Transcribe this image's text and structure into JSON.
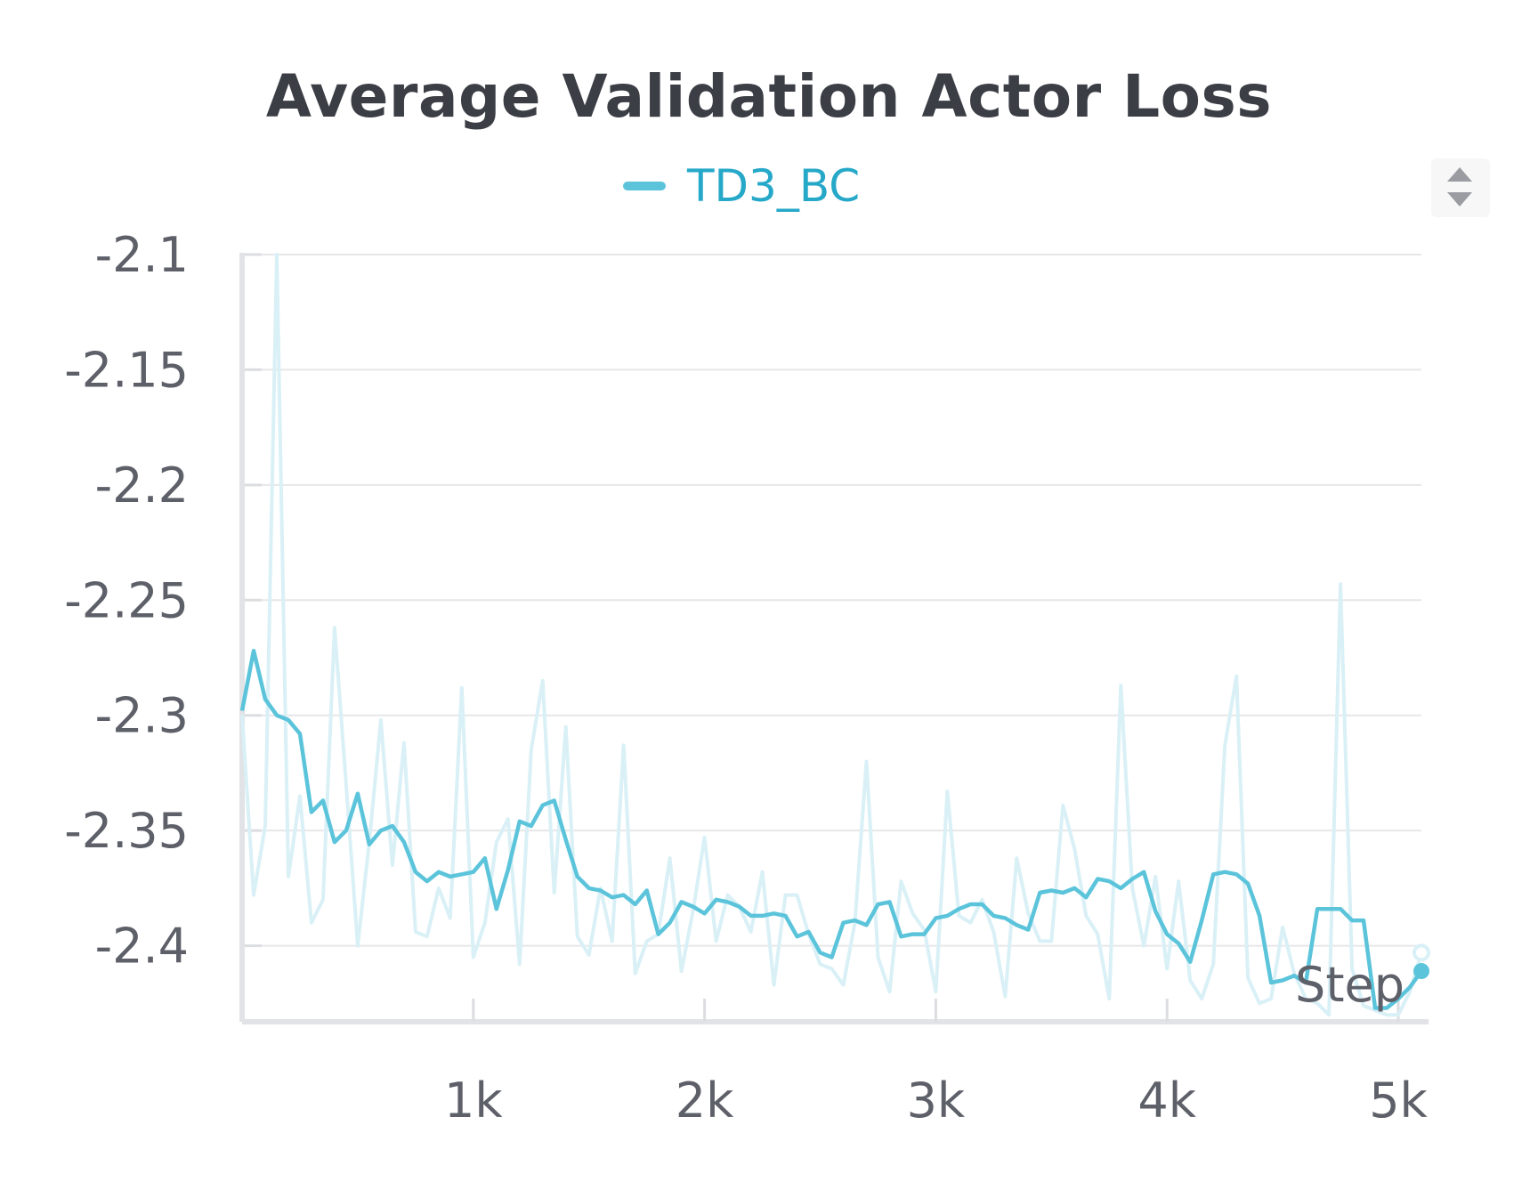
{
  "chart_data": {
    "type": "line",
    "title": "Average Validation Actor Loss",
    "xlabel": "Step",
    "ylabel": "",
    "legend": {
      "placement": "top-center"
    },
    "grid": true,
    "xlim": [
      0,
      5100
    ],
    "ylim": [
      -2.433,
      -2.1
    ],
    "x_ticks": [
      {
        "value": 1000,
        "label": "1k"
      },
      {
        "value": 2000,
        "label": "2k"
      },
      {
        "value": 3000,
        "label": "3k"
      },
      {
        "value": 4000,
        "label": "4k"
      },
      {
        "value": 5000,
        "label": "5k"
      }
    ],
    "y_ticks": [
      {
        "value": -2.1,
        "label": "-2.1"
      },
      {
        "value": -2.15,
        "label": "-2.15"
      },
      {
        "value": -2.2,
        "label": "-2.2"
      },
      {
        "value": -2.25,
        "label": "-2.25"
      },
      {
        "value": -2.3,
        "label": "-2.3"
      },
      {
        "value": -2.35,
        "label": "-2.35"
      },
      {
        "value": -2.4,
        "label": "-2.4"
      }
    ],
    "series": [
      {
        "name": "TD3_BC",
        "color": "#5bc4db",
        "raw_color": "#d9f0f6",
        "x": [
          0,
          50,
          100,
          150,
          200,
          250,
          300,
          350,
          400,
          450,
          500,
          550,
          600,
          650,
          700,
          750,
          800,
          850,
          900,
          950,
          1000,
          1050,
          1100,
          1150,
          1200,
          1250,
          1300,
          1350,
          1400,
          1450,
          1500,
          1550,
          1600,
          1650,
          1700,
          1750,
          1800,
          1850,
          1900,
          1950,
          2000,
          2050,
          2100,
          2150,
          2200,
          2250,
          2300,
          2350,
          2400,
          2450,
          2500,
          2550,
          2600,
          2650,
          2700,
          2750,
          2800,
          2850,
          2900,
          2950,
          3000,
          3050,
          3100,
          3150,
          3200,
          3250,
          3300,
          3350,
          3400,
          3450,
          3500,
          3550,
          3600,
          3650,
          3700,
          3750,
          3800,
          3850,
          3900,
          3950,
          4000,
          4050,
          4100,
          4150,
          4200,
          4250,
          4300,
          4350,
          4400,
          4450,
          4500,
          4550,
          4600,
          4650,
          4700,
          4750,
          4800,
          4850,
          4900,
          4950,
          5000,
          5050,
          5100
        ],
        "raw": [
          -2.3,
          -2.378,
          -2.348,
          -2.1,
          -2.37,
          -2.335,
          -2.39,
          -2.38,
          -2.262,
          -2.33,
          -2.4,
          -2.355,
          -2.302,
          -2.365,
          -2.312,
          -2.394,
          -2.396,
          -2.375,
          -2.388,
          -2.288,
          -2.405,
          -2.39,
          -2.355,
          -2.345,
          -2.408,
          -2.315,
          -2.285,
          -2.377,
          -2.305,
          -2.396,
          -2.404,
          -2.375,
          -2.398,
          -2.313,
          -2.412,
          -2.398,
          -2.395,
          -2.362,
          -2.411,
          -2.385,
          -2.353,
          -2.398,
          -2.378,
          -2.383,
          -2.394,
          -2.368,
          -2.417,
          -2.378,
          -2.378,
          -2.395,
          -2.408,
          -2.41,
          -2.417,
          -2.39,
          -2.32,
          -2.405,
          -2.42,
          -2.372,
          -2.386,
          -2.393,
          -2.42,
          -2.333,
          -2.387,
          -2.39,
          -2.38,
          -2.394,
          -2.422,
          -2.362,
          -2.386,
          -2.398,
          -2.398,
          -2.339,
          -2.358,
          -2.387,
          -2.395,
          -2.423,
          -2.287,
          -2.375,
          -2.4,
          -2.37,
          -2.41,
          -2.372,
          -2.415,
          -2.423,
          -2.408,
          -2.313,
          -2.283,
          -2.414,
          -2.425,
          -2.423,
          -2.392,
          -2.412,
          -2.423,
          -2.425,
          -2.43,
          -2.243,
          -2.41,
          -2.426,
          -2.428,
          -2.43,
          -2.43,
          -2.42,
          -2.403
        ],
        "smoothed": [
          -2.298,
          -2.272,
          -2.293,
          -2.3,
          -2.302,
          -2.308,
          -2.342,
          -2.337,
          -2.355,
          -2.35,
          -2.334,
          -2.356,
          -2.35,
          -2.348,
          -2.355,
          -2.368,
          -2.372,
          -2.368,
          -2.37,
          -2.369,
          -2.368,
          -2.362,
          -2.384,
          -2.367,
          -2.346,
          -2.348,
          -2.339,
          -2.337,
          -2.354,
          -2.37,
          -2.375,
          -2.376,
          -2.379,
          -2.378,
          -2.382,
          -2.376,
          -2.395,
          -2.39,
          -2.381,
          -2.383,
          -2.386,
          -2.38,
          -2.381,
          -2.383,
          -2.387,
          -2.387,
          -2.386,
          -2.387,
          -2.396,
          -2.394,
          -2.403,
          -2.405,
          -2.39,
          -2.389,
          -2.391,
          -2.382,
          -2.381,
          -2.396,
          -2.395,
          -2.395,
          -2.388,
          -2.387,
          -2.384,
          -2.382,
          -2.382,
          -2.387,
          -2.388,
          -2.391,
          -2.393,
          -2.377,
          -2.376,
          -2.377,
          -2.375,
          -2.379,
          -2.371,
          -2.372,
          -2.375,
          -2.371,
          -2.368,
          -2.385,
          -2.395,
          -2.399,
          -2.407,
          -2.389,
          -2.369,
          -2.368,
          -2.369,
          -2.373,
          -2.387,
          -2.416,
          -2.415,
          -2.413,
          -2.416,
          -2.384,
          -2.384,
          -2.384,
          -2.389,
          -2.389,
          -2.427,
          -2.427,
          -2.423,
          -2.418,
          -2.411
        ]
      }
    ]
  }
}
